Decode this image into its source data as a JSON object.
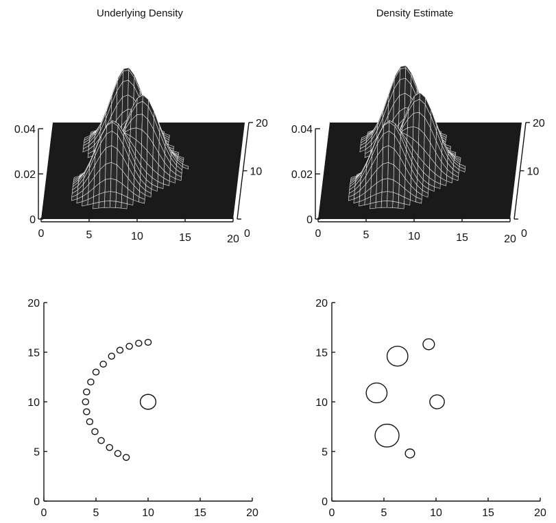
{
  "chart_data": [
    {
      "type": "surface",
      "title": "Underlying Density",
      "x_ticks": [
        "0",
        "5",
        "10",
        "15",
        "20"
      ],
      "y_ticks": [
        "0",
        "10",
        "20"
      ],
      "z_ticks": [
        "0",
        "0.02",
        "0.04"
      ],
      "xlim": [
        0,
        20
      ],
      "ylim": [
        0,
        20
      ],
      "zlim": [
        0,
        0.04
      ],
      "peaks": [
        {
          "x": 7,
          "y": 6,
          "height": 0.03
        },
        {
          "x": 10,
          "y": 10,
          "height": 0.033
        },
        {
          "x": 8,
          "y": 15,
          "height": 0.035
        }
      ]
    },
    {
      "type": "surface",
      "title": "Density Estimate",
      "x_ticks": [
        "0",
        "5",
        "10",
        "15",
        "20"
      ],
      "y_ticks": [
        "0",
        "10",
        "20"
      ],
      "z_ticks": [
        "0",
        "0.02",
        "0.04"
      ],
      "xlim": [
        0,
        20
      ],
      "ylim": [
        0,
        20
      ],
      "zlim": [
        0,
        0.04
      ],
      "peaks": [
        {
          "x": 7,
          "y": 6,
          "height": 0.03
        },
        {
          "x": 10,
          "y": 10,
          "height": 0.034
        },
        {
          "x": 8,
          "y": 15,
          "height": 0.036
        }
      ]
    },
    {
      "type": "scatter",
      "x_ticks": [
        "0",
        "5",
        "10",
        "15",
        "20"
      ],
      "y_ticks": [
        "0",
        "5",
        "10",
        "15",
        "20"
      ],
      "xlim": [
        0,
        20
      ],
      "ylim": [
        0,
        20
      ],
      "points": [
        {
          "x": 10,
          "y": 16,
          "r": 0.3
        },
        {
          "x": 9.1,
          "y": 15.9,
          "r": 0.3
        },
        {
          "x": 8.2,
          "y": 15.6,
          "r": 0.3
        },
        {
          "x": 7.3,
          "y": 15.2,
          "r": 0.3
        },
        {
          "x": 6.5,
          "y": 14.6,
          "r": 0.3
        },
        {
          "x": 5.7,
          "y": 13.8,
          "r": 0.3
        },
        {
          "x": 5.0,
          "y": 13.0,
          "r": 0.3
        },
        {
          "x": 4.5,
          "y": 12.0,
          "r": 0.3
        },
        {
          "x": 4.1,
          "y": 11.0,
          "r": 0.3
        },
        {
          "x": 4.0,
          "y": 10.0,
          "r": 0.3
        },
        {
          "x": 4.1,
          "y": 9.0,
          "r": 0.3
        },
        {
          "x": 4.4,
          "y": 8.0,
          "r": 0.3
        },
        {
          "x": 4.9,
          "y": 7.0,
          "r": 0.3
        },
        {
          "x": 5.5,
          "y": 6.1,
          "r": 0.3
        },
        {
          "x": 6.3,
          "y": 5.4,
          "r": 0.3
        },
        {
          "x": 7.1,
          "y": 4.8,
          "r": 0.3
        },
        {
          "x": 7.9,
          "y": 4.4,
          "r": 0.3
        },
        {
          "x": 10,
          "y": 10,
          "r": 0.75
        }
      ]
    },
    {
      "type": "scatter",
      "x_ticks": [
        "0",
        "5",
        "10",
        "15",
        "20"
      ],
      "y_ticks": [
        "0",
        "5",
        "10",
        "15",
        "20"
      ],
      "xlim": [
        0,
        20
      ],
      "ylim": [
        0,
        20
      ],
      "points": [
        {
          "x": 6.3,
          "y": 14.6,
          "r": 1.0
        },
        {
          "x": 9.3,
          "y": 15.8,
          "r": 0.55
        },
        {
          "x": 4.3,
          "y": 10.9,
          "r": 1.0
        },
        {
          "x": 10.1,
          "y": 10.0,
          "r": 0.7
        },
        {
          "x": 5.3,
          "y": 6.6,
          "r": 1.15
        },
        {
          "x": 7.5,
          "y": 4.8,
          "r": 0.45
        }
      ]
    }
  ]
}
